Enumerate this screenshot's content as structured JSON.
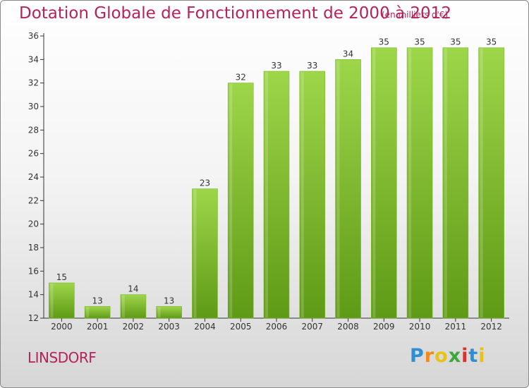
{
  "header": {
    "title": "Dotation Globale de Fonctionnement de 2000 à 2012",
    "unit": "(en milliers d'€)"
  },
  "footer": {
    "commune": "LINSDORF",
    "logo_letters": [
      "P",
      "r",
      "o",
      "x",
      "i",
      "t",
      "i"
    ],
    "logo_colors": [
      "#2f8fd0",
      "#f08a1c",
      "#e8c21a",
      "#3aa83a",
      "#d8332d",
      "#2f8fd0",
      "#e8c21a"
    ]
  },
  "colors": {
    "bar_top": "#9ed64a",
    "bar_bottom": "#5f9a16",
    "title": "#b4235a"
  },
  "chart_data": {
    "type": "bar",
    "categories": [
      "2000",
      "2001",
      "2002",
      "2003",
      "2004",
      "2005",
      "2006",
      "2007",
      "2008",
      "2009",
      "2010",
      "2011",
      "2012"
    ],
    "values": [
      15,
      13,
      14,
      13,
      23,
      32,
      33,
      33,
      34,
      35,
      35,
      35,
      35
    ],
    "ylim": [
      12,
      36
    ],
    "yticks": [
      12,
      14,
      16,
      18,
      20,
      22,
      24,
      26,
      28,
      30,
      32,
      34,
      36
    ],
    "grid": false,
    "data_labels": true
  }
}
